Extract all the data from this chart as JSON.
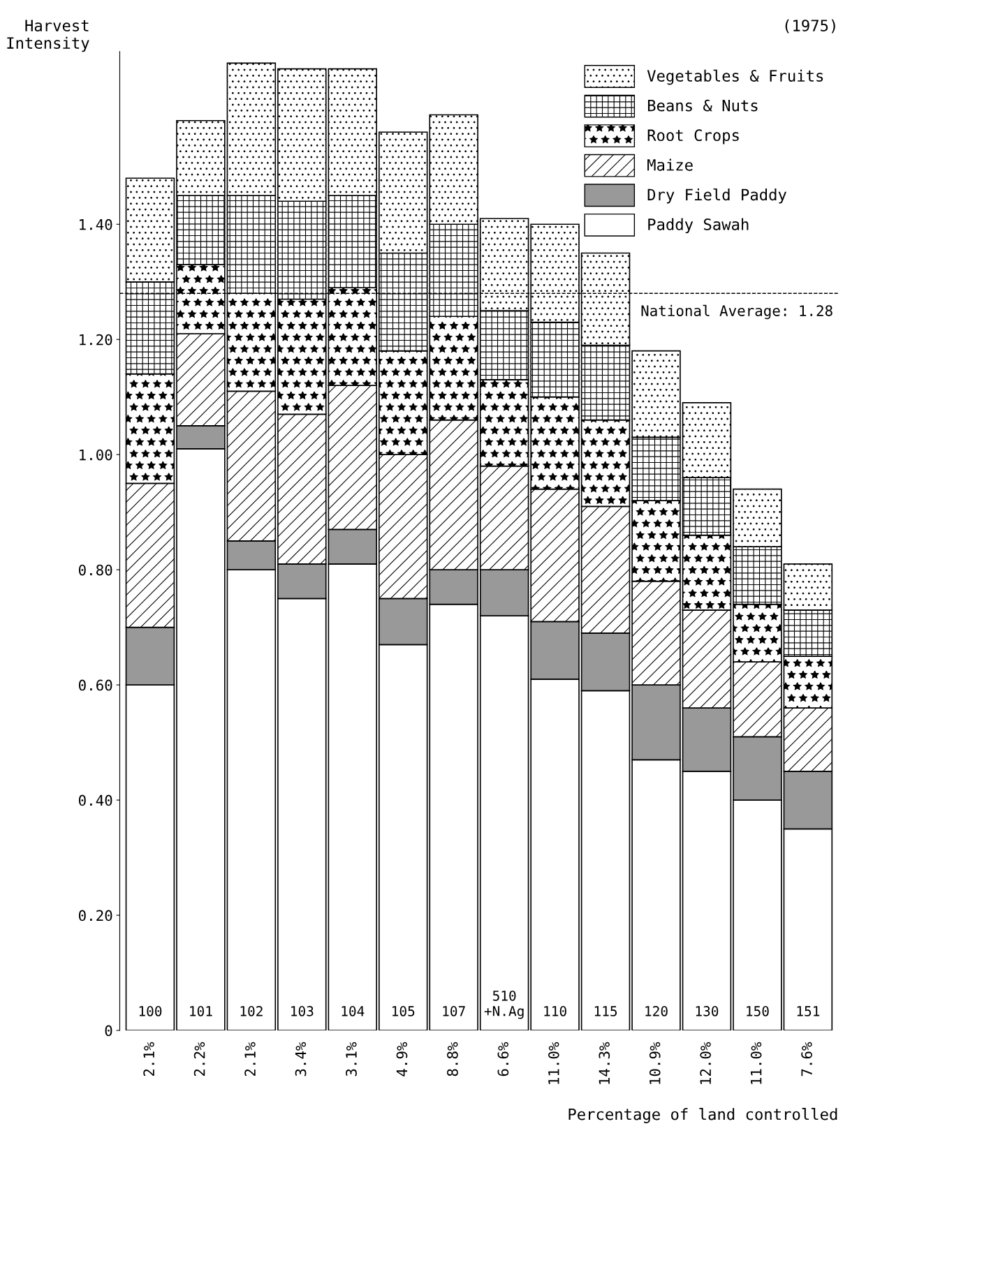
{
  "chart_data": {
    "type": "bar",
    "stacked": true,
    "title": "(1975)",
    "ylabel": "Harvest\nIntensity",
    "xlabel": "Percentage of land controlled",
    "categories": [
      "100",
      "101",
      "102",
      "103",
      "104",
      "105",
      "107",
      "510\n+N.Ag",
      "110",
      "115",
      "120",
      "130",
      "150",
      "151"
    ],
    "series": [
      {
        "name": "Paddy Sawah",
        "color": "#ffffff",
        "values": [
          0.6,
          1.01,
          0.8,
          0.75,
          0.81,
          0.67,
          0.74,
          0.72,
          0.61,
          0.59,
          0.47,
          0.45,
          0.4,
          0.35
        ]
      },
      {
        "name": "Dry Field Paddy",
        "color": "#999999",
        "values": [
          0.1,
          0.04,
          0.05,
          0.06,
          0.06,
          0.08,
          0.06,
          0.08,
          0.1,
          0.1,
          0.13,
          0.11,
          0.11,
          0.1
        ]
      },
      {
        "name": "Maize",
        "color": "#000000",
        "values": [
          0.25,
          0.16,
          0.26,
          0.26,
          0.25,
          0.25,
          0.26,
          0.18,
          0.23,
          0.22,
          0.18,
          0.17,
          0.13,
          0.11
        ]
      },
      {
        "name": "Root Crops",
        "color": "#000000",
        "values": [
          0.19,
          0.12,
          0.17,
          0.2,
          0.17,
          0.18,
          0.18,
          0.15,
          0.16,
          0.15,
          0.14,
          0.13,
          0.1,
          0.09
        ]
      },
      {
        "name": "Beans & Nuts",
        "color": "#000000",
        "values": [
          0.16,
          0.12,
          0.17,
          0.17,
          0.16,
          0.17,
          0.16,
          0.12,
          0.13,
          0.13,
          0.11,
          0.1,
          0.1,
          0.08
        ]
      },
      {
        "name": "Vegetables & Fruits",
        "color": "#000000",
        "values": [
          0.18,
          0.13,
          0.23,
          0.23,
          0.22,
          0.21,
          0.19,
          0.16,
          0.17,
          0.16,
          0.15,
          0.13,
          0.1,
          0.08
        ]
      }
    ],
    "ylim": [
      0,
      1.7
    ],
    "yticks": [
      0,
      {
        "value": 0.2,
        "label": "0.20"
      },
      {
        "value": 0.4,
        "label": "0.40"
      },
      {
        "value": 0.6,
        "label": "0.60"
      },
      {
        "value": 0.8,
        "label": "0.80"
      },
      {
        "value": 1.0,
        "label": "1.00"
      },
      {
        "value": 1.2,
        "label": "1.20"
      },
      {
        "value": 1.4,
        "label": "1.40"
      }
    ],
    "ref_lines": [
      {
        "axis": "y",
        "value": 1.28,
        "label": "National Average: 1.28",
        "line_style": "dashed",
        "color": "#000000"
      }
    ],
    "annotations": [
      "2.1%",
      "2.2%",
      "2.1%",
      "3.4%",
      "3.1%",
      "4.9%",
      "8.8%",
      "6.6%",
      "11.0%",
      "14.3%",
      "10.9%",
      "12.0%",
      "11.0%",
      "7.6%"
    ],
    "legend": "top right",
    "grid": false
  }
}
